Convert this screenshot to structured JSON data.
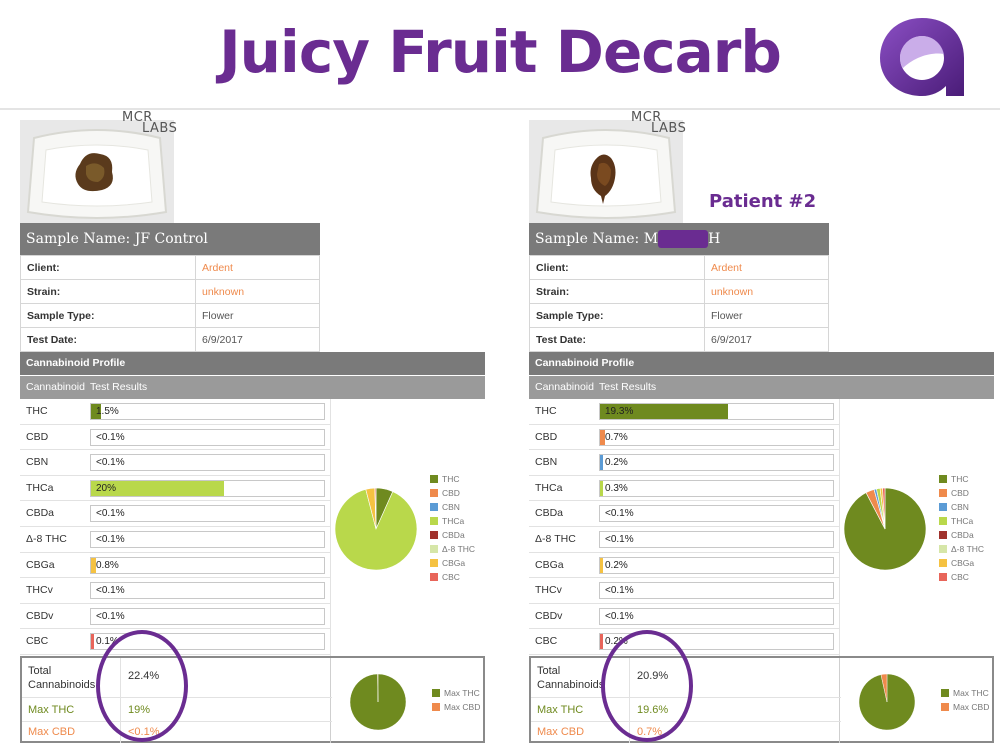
{
  "title": "Juicy Fruit Decarb",
  "lab_logo": {
    "line1": "MCR",
    "line2": "LABS"
  },
  "panels": [
    {
      "patient_label": "",
      "sample_name_prefix": "Sample Name: ",
      "sample_name": "JF Control",
      "sample_name_suffix": "",
      "redacted": false,
      "info": [
        {
          "key": "Client:",
          "value": "Ardent",
          "highlight": true
        },
        {
          "key": "Strain:",
          "value": "unknown",
          "highlight": true
        },
        {
          "key": "Sample Type:",
          "value": "Flower",
          "highlight": false
        },
        {
          "key": "Test Date:",
          "value": "6/9/2017",
          "highlight": false
        }
      ],
      "profile_header": "Cannabinoid Profile",
      "col_cannabinoid": "Cannabinoid",
      "col_results": "Test Results",
      "cannabinoids": [
        {
          "name": "THC",
          "display": "1.5%",
          "value": 1.5,
          "color": "#6f8a1f"
        },
        {
          "name": "CBD",
          "display": "<0.1%",
          "value": 0,
          "color": "#ef8a4c"
        },
        {
          "name": "CBN",
          "display": "<0.1%",
          "value": 0,
          "color": "#5b9bd5"
        },
        {
          "name": "THCa",
          "display": "20%",
          "value": 20,
          "color": "#b9d84b"
        },
        {
          "name": "CBDa",
          "display": "<0.1%",
          "value": 0,
          "color": "#a0322d"
        },
        {
          "name": "Δ-8 THC",
          "display": "<0.1%",
          "value": 0,
          "color": "#d6e6a8"
        },
        {
          "name": "CBGa",
          "display": "0.8%",
          "value": 0.8,
          "color": "#f5c242"
        },
        {
          "name": "THCv",
          "display": "<0.1%",
          "value": 0,
          "color": "#a9a9a9"
        },
        {
          "name": "CBDv",
          "display": "<0.1%",
          "value": 0,
          "color": "#a9a9a9"
        },
        {
          "name": "CBC",
          "display": "0.1%",
          "value": 0.1,
          "color": "#e8655a"
        }
      ],
      "legend": [
        {
          "name": "THC",
          "color": "#6f8a1f"
        },
        {
          "name": "CBD",
          "color": "#ef8a4c"
        },
        {
          "name": "CBN",
          "color": "#5b9bd5"
        },
        {
          "name": "THCa",
          "color": "#b9d84b"
        },
        {
          "name": "CBDa",
          "color": "#a0322d"
        },
        {
          "name": "Δ-8 THC",
          "color": "#d6e6a8"
        },
        {
          "name": "CBGa",
          "color": "#f5c242"
        },
        {
          "name": "CBC",
          "color": "#e8655a"
        }
      ],
      "totals": {
        "total_label": "Total Cannabinoids",
        "total_value": "22.4%",
        "max_thc_label": "Max THC",
        "max_thc_value": "19%",
        "max_cbd_label": "Max CBD",
        "max_cbd_value": "<0.1%",
        "max_thc_num": 19,
        "max_cbd_num": 0.05
      },
      "totals_legend": [
        {
          "name": "Max THC",
          "color": "#6f8a1f"
        },
        {
          "name": "Max CBD",
          "color": "#ef8a4c"
        }
      ]
    },
    {
      "patient_label": "Patient #2",
      "sample_name_prefix": "Sample Name: ",
      "sample_name": "M",
      "sample_name_suffix": "H",
      "redacted": true,
      "info": [
        {
          "key": "Client:",
          "value": "Ardent",
          "highlight": true
        },
        {
          "key": "Strain:",
          "value": "unknown",
          "highlight": true
        },
        {
          "key": "Sample Type:",
          "value": "Flower",
          "highlight": false
        },
        {
          "key": "Test Date:",
          "value": "6/9/2017",
          "highlight": false
        }
      ],
      "profile_header": "Cannabinoid Profile",
      "col_cannabinoid": "Cannabinoid",
      "col_results": "Test Results",
      "cannabinoids": [
        {
          "name": "THC",
          "display": "19.3%",
          "value": 19.3,
          "color": "#6f8a1f"
        },
        {
          "name": "CBD",
          "display": "0.7%",
          "value": 0.7,
          "color": "#ef8a4c"
        },
        {
          "name": "CBN",
          "display": "0.2%",
          "value": 0.2,
          "color": "#5b9bd5"
        },
        {
          "name": "THCa",
          "display": "0.3%",
          "value": 0.3,
          "color": "#b9d84b"
        },
        {
          "name": "CBDa",
          "display": "<0.1%",
          "value": 0,
          "color": "#a0322d"
        },
        {
          "name": "Δ-8 THC",
          "display": "<0.1%",
          "value": 0,
          "color": "#d6e6a8"
        },
        {
          "name": "CBGa",
          "display": "0.2%",
          "value": 0.2,
          "color": "#f5c242"
        },
        {
          "name": "THCv",
          "display": "<0.1%",
          "value": 0,
          "color": "#a9a9a9"
        },
        {
          "name": "CBDv",
          "display": "<0.1%",
          "value": 0,
          "color": "#a9a9a9"
        },
        {
          "name": "CBC",
          "display": "0.2%",
          "value": 0.2,
          "color": "#e8655a"
        }
      ],
      "legend": [
        {
          "name": "THC",
          "color": "#6f8a1f"
        },
        {
          "name": "CBD",
          "color": "#ef8a4c"
        },
        {
          "name": "CBN",
          "color": "#5b9bd5"
        },
        {
          "name": "THCa",
          "color": "#b9d84b"
        },
        {
          "name": "CBDa",
          "color": "#a0322d"
        },
        {
          "name": "Δ-8 THC",
          "color": "#d6e6a8"
        },
        {
          "name": "CBGa",
          "color": "#f5c242"
        },
        {
          "name": "CBC",
          "color": "#e8655a"
        }
      ],
      "totals": {
        "total_label": "Total Cannabinoids",
        "total_value": "20.9%",
        "max_thc_label": "Max THC",
        "max_thc_value": "19.6%",
        "max_cbd_label": "Max CBD",
        "max_cbd_value": "0.7%",
        "max_thc_num": 19.6,
        "max_cbd_num": 0.7
      },
      "totals_legend": [
        {
          "name": "Max THC",
          "color": "#6f8a1f"
        },
        {
          "name": "Max CBD",
          "color": "#ef8a4c"
        }
      ]
    }
  ],
  "colors": {
    "purple": "#6a2c91",
    "header_gray": "#7a7a7a",
    "subheader_gray": "#9a9a9a",
    "olive": "#6f8a1f",
    "orange": "#ef8a4c"
  }
}
